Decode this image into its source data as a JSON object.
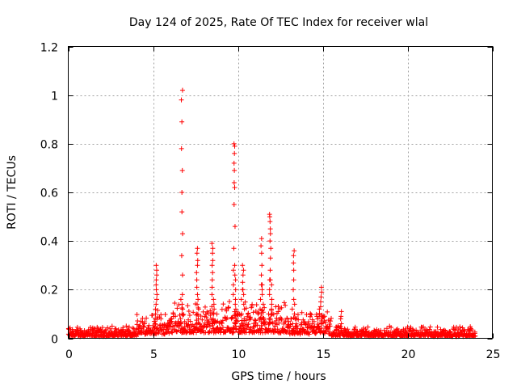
{
  "chart_data": {
    "type": "scatter",
    "title": "Day 124 of 2025, Rate Of TEC Index for receiver wlal",
    "xlabel": "GPS time / hours",
    "ylabel": "ROTI / TECUs",
    "xlim": [
      0,
      25
    ],
    "ylim": [
      0,
      1.2
    ],
    "x_ticks": [
      0,
      5,
      10,
      15,
      20,
      25
    ],
    "x_tick_labels": [
      "0",
      "5",
      "10",
      "15",
      "20",
      "25"
    ],
    "y_ticks": [
      0,
      0.2,
      0.4,
      0.6,
      0.8,
      1.0,
      1.2
    ],
    "y_tick_labels": [
      "0",
      "0.2",
      "0.4",
      "0.6",
      "0.8",
      "1",
      "1.2"
    ],
    "grid": true,
    "marker": "plus",
    "color": "#ff0000",
    "x_range": [
      0,
      24
    ],
    "typical_baseline": 0.03,
    "notable_spikes": [
      {
        "x": 5.2,
        "y_values": [
          0.3,
          0.28,
          0.26,
          0.24,
          0.22,
          0.2,
          0.18,
          0.16,
          0.14
        ]
      },
      {
        "x": 6.7,
        "y_values": [
          1.02,
          0.98,
          0.89,
          0.78,
          0.69,
          0.6,
          0.52,
          0.43,
          0.34,
          0.26,
          0.18
        ]
      },
      {
        "x": 7.6,
        "y_values": [
          0.37,
          0.35,
          0.32,
          0.3,
          0.27,
          0.24,
          0.21,
          0.18
        ]
      },
      {
        "x": 8.5,
        "y_values": [
          0.39,
          0.37,
          0.35,
          0.32,
          0.3,
          0.27,
          0.24,
          0.21,
          0.18
        ]
      },
      {
        "x": 9.8,
        "y_values": [
          0.8,
          0.79,
          0.76,
          0.72,
          0.69,
          0.64,
          0.62,
          0.55,
          0.46,
          0.37,
          0.3
        ]
      },
      {
        "x": 10.3,
        "y_values": [
          0.3,
          0.28,
          0.26,
          0.23,
          0.2
        ]
      },
      {
        "x": 11.4,
        "y_values": [
          0.41,
          0.38,
          0.35,
          0.3,
          0.26,
          0.22
        ]
      },
      {
        "x": 11.9,
        "y_values": [
          0.51,
          0.5,
          0.48,
          0.45,
          0.43,
          0.4,
          0.37,
          0.33,
          0.28,
          0.24
        ]
      },
      {
        "x": 13.3,
        "y_values": [
          0.36,
          0.34,
          0.31,
          0.28,
          0.24,
          0.2,
          0.16
        ]
      },
      {
        "x": 14.9,
        "y_values": [
          0.21,
          0.19,
          0.17,
          0.15,
          0.13
        ]
      },
      {
        "x": 16.1,
        "y_values": [
          0.11,
          0.09
        ]
      }
    ]
  }
}
